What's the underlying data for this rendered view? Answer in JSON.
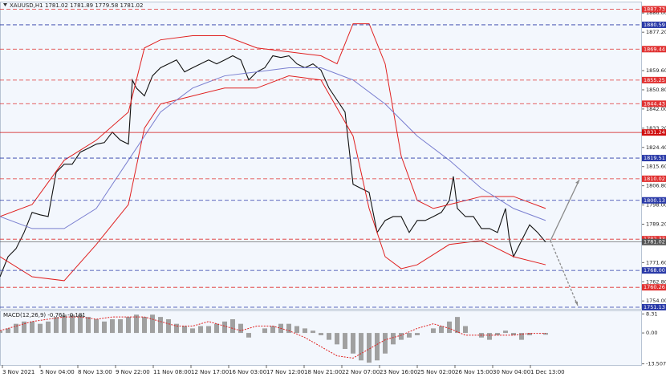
{
  "chart_data": [
    {
      "type": "line",
      "title": "XAUUSD,H1",
      "subtitle": "1781.02 1781.89 1779.58 1781.02",
      "xlim": [
        0,
        800
      ],
      "xticks": [
        {
          "value": 3,
          "label": "3 Nov 2021"
        },
        {
          "value": 50,
          "label": "5 Nov 04:00"
        },
        {
          "value": 97,
          "label": "8 Nov 13:00"
        },
        {
          "value": 144,
          "label": "9 Nov 22:00"
        },
        {
          "value": 191,
          "label": "11 Nov 08:00"
        },
        {
          "value": 238,
          "label": "12 Nov 17:00"
        },
        {
          "value": 285,
          "label": "16 Nov 03:00"
        },
        {
          "value": 332,
          "label": "17 Nov 12:00"
        },
        {
          "value": 379,
          "label": "18 Nov 21:00"
        },
        {
          "value": 426,
          "label": "22 Nov 07:00"
        },
        {
          "value": 473,
          "label": "23 Nov 16:00"
        },
        {
          "value": 520,
          "label": "25 Nov 02:00"
        },
        {
          "value": 567,
          "label": "26 Nov 15:00"
        },
        {
          "value": 614,
          "label": "30 Nov 04:00"
        },
        {
          "value": 661,
          "label": "1 Dec 13:00"
        }
      ],
      "ylim": [
        1750.4,
        1890.5
      ],
      "yticks": [
        {
          "value": 1886,
          "label": "1886.00"
        },
        {
          "value": 1877.2,
          "label": "1877.20"
        },
        {
          "value": 1859.6,
          "label": "1859.60"
        },
        {
          "value": 1850.8,
          "label": "1850.80"
        },
        {
          "value": 1842,
          "label": "1842.00"
        },
        {
          "value": 1833.2,
          "label": "1833.20"
        },
        {
          "value": 1824.4,
          "label": "1824.40"
        },
        {
          "value": 1815.6,
          "label": "1815.60"
        },
        {
          "value": 1806.8,
          "label": "1806.80"
        },
        {
          "value": 1798,
          "label": "1798.00"
        },
        {
          "value": 1789.2,
          "label": "1789.20"
        },
        {
          "value": 1771.6,
          "label": "1771.60"
        },
        {
          "value": 1762.8,
          "label": "1762.80"
        },
        {
          "value": 1754,
          "label": "1754.00"
        }
      ],
      "levels": [
        {
          "value": 1887.73,
          "label": "1887.73",
          "color": "#e03030",
          "dash": true
        },
        {
          "value": 1880.59,
          "label": "1880.59",
          "color": "#2a3aa8",
          "dash": true
        },
        {
          "value": 1869.44,
          "label": "1869.44",
          "color": "#e03030",
          "dash": true
        },
        {
          "value": 1855.25,
          "label": "1855.25",
          "color": "#e03030",
          "dash": true
        },
        {
          "value": 1844.43,
          "label": "1844.43",
          "color": "#e03030",
          "dash": true
        },
        {
          "value": 1831.24,
          "label": "1831.24",
          "color": "#d01010",
          "dash": false
        },
        {
          "value": 1819.51,
          "label": "1819.51",
          "color": "#2a3aa8",
          "dash": true
        },
        {
          "value": 1810.02,
          "label": "1810.02",
          "color": "#e03030",
          "dash": true
        },
        {
          "value": 1800.13,
          "label": "1800.13",
          "color": "#2a3aa8",
          "dash": true
        },
        {
          "value": 1782.33,
          "label": "1782.33",
          "color": "#e03030",
          "dash": true
        },
        {
          "value": 1768,
          "label": "1768.00",
          "color": "#2a3aa8",
          "dash": true
        },
        {
          "value": 1760.26,
          "label": "1760.26",
          "color": "#e03030",
          "dash": true
        },
        {
          "value": 1751.13,
          "label": "1751.13",
          "color": "#2a3aa8",
          "dash": true
        }
      ],
      "series": [
        {
          "color": "#111111",
          "x": [
            0,
            10,
            20,
            30,
            40,
            50,
            60,
            70,
            80,
            90,
            100,
            110,
            120,
            130,
            140,
            150,
            160,
            165,
            170,
            175,
            180,
            190,
            200,
            210,
            220,
            230,
            240,
            250,
            260,
            270,
            280,
            290,
            300,
            310,
            320,
            330,
            340,
            350,
            360,
            370,
            380,
            390,
            400,
            410,
            420,
            430,
            440,
            450,
            460,
            470,
            480,
            490,
            500,
            510,
            520,
            530,
            540,
            550,
            560,
            565,
            570,
            580,
            590,
            600,
            610,
            620,
            630,
            635,
            640,
            650,
            660,
            670,
            680
          ],
          "values": [
            1765.1,
            1774.3,
            1778.0,
            1785.4,
            1794.6,
            1793.5,
            1792.7,
            1813.0,
            1816.7,
            1816.7,
            1822.2,
            1824.0,
            1825.9,
            1826.6,
            1831.4,
            1827.7,
            1825.9,
            1855.3,
            1851.6,
            1849.8,
            1848.0,
            1857.2,
            1860.9,
            1862.7,
            1864.5,
            1859.0,
            1860.9,
            1862.7,
            1864.5,
            1862.7,
            1864.5,
            1866.4,
            1864.5,
            1855.3,
            1859.0,
            1860.9,
            1866.4,
            1865.6,
            1866.4,
            1862.7,
            1860.9,
            1862.7,
            1859.8,
            1851.6,
            1846.1,
            1840.6,
            1807.5,
            1805.6,
            1803.8,
            1785.4,
            1790.9,
            1792.7,
            1792.7,
            1785.4,
            1790.9,
            1790.9,
            1792.7,
            1794.6,
            1800.1,
            1811.1,
            1796.4,
            1792.7,
            1792.7,
            1787.2,
            1787.2,
            1785.4,
            1796.4,
            1781.7,
            1774.3,
            1781.7,
            1788.9,
            1785.4,
            1781.0
          ]
        },
        {
          "color": "#e02020",
          "x": [
            0,
            40,
            80,
            120,
            160,
            180,
            200,
            240,
            280,
            320,
            360,
            400,
            420,
            440,
            460,
            480,
            500,
            520,
            540,
            560,
            600,
            640,
            680
          ],
          "values": [
            1792.7,
            1798.2,
            1818.5,
            1827.7,
            1840.6,
            1870.0,
            1873.7,
            1875.6,
            1875.6,
            1870.0,
            1868.2,
            1866.4,
            1862.7,
            1881.1,
            1881.1,
            1862.7,
            1820.4,
            1800.1,
            1796.4,
            1798.2,
            1801.9,
            1801.9,
            1796.4
          ]
        },
        {
          "color": "#e02020",
          "x": [
            0,
            40,
            80,
            120,
            160,
            180,
            200,
            240,
            280,
            320,
            360,
            400,
            440,
            460,
            480,
            500,
            520,
            560,
            600,
            640,
            680
          ],
          "values": [
            1774.3,
            1765.1,
            1763.3,
            1779.9,
            1798.2,
            1833.2,
            1844.3,
            1848.0,
            1851.6,
            1851.6,
            1857.2,
            1855.3,
            1829.6,
            1796.4,
            1774.3,
            1768.8,
            1770.6,
            1779.9,
            1781.7,
            1774.3,
            1770.6
          ]
        },
        {
          "color": "#7a7fd0",
          "x": [
            0,
            40,
            80,
            120,
            160,
            200,
            240,
            280,
            320,
            360,
            400,
            440,
            480,
            520,
            560,
            600,
            640,
            680
          ],
          "values": [
            1792.7,
            1787.2,
            1787.2,
            1796.4,
            1818.5,
            1840.6,
            1851.6,
            1857.2,
            1859.0,
            1860.9,
            1860.9,
            1855.3,
            1844.3,
            1829.6,
            1818.5,
            1805.6,
            1796.4,
            1790.9
          ]
        }
      ],
      "bid": {
        "value": 1781.02,
        "label": "1781.02",
        "color": "#555555"
      }
    },
    {
      "type": "bar",
      "title": "MACD(12,26,9) -0.761 -0.181",
      "color": "#a0a0a0",
      "xlim": [
        0,
        800
      ],
      "ylim": [
        -14,
        9.5
      ],
      "yticks": [
        8.31,
        {
          "value": 0,
          "label": "0.00"
        },
        -13.507
      ],
      "x": [
        0,
        10,
        20,
        30,
        40,
        50,
        60,
        70,
        80,
        90,
        100,
        110,
        120,
        130,
        140,
        150,
        160,
        170,
        180,
        190,
        200,
        210,
        220,
        230,
        240,
        250,
        260,
        270,
        280,
        290,
        300,
        310,
        320,
        330,
        340,
        350,
        360,
        370,
        380,
        390,
        400,
        410,
        420,
        430,
        440,
        450,
        460,
        470,
        480,
        490,
        500,
        510,
        520,
        530,
        540,
        550,
        560,
        570,
        580,
        590,
        600,
        610,
        620,
        630,
        640,
        650,
        660,
        670,
        680
      ],
      "values": [
        1,
        2,
        4,
        5,
        5,
        4,
        5,
        7,
        8,
        8,
        8,
        7,
        6,
        5,
        6,
        6,
        7,
        8,
        7,
        8,
        7,
        6,
        4,
        3,
        2,
        3,
        3,
        4,
        5,
        6,
        4,
        -2,
        0,
        2,
        3,
        4,
        4,
        3,
        2,
        1,
        -1,
        -3,
        -5,
        -7,
        -9,
        -12,
        -13,
        -12,
        -9,
        -5,
        -3,
        -2,
        -1,
        0,
        2,
        3,
        5,
        7,
        3,
        0,
        -2,
        -3,
        -1,
        1,
        -1,
        -3,
        -1,
        0,
        -0.761
      ],
      "signal": {
        "color": "#e02020",
        "x": [
          0,
          20,
          40,
          60,
          80,
          100,
          120,
          140,
          160,
          180,
          200,
          220,
          240,
          260,
          280,
          300,
          320,
          340,
          360,
          380,
          400,
          420,
          440,
          460,
          480,
          500,
          520,
          540,
          560,
          580,
          600,
          620,
          640,
          660,
          680
        ],
        "values": [
          1,
          3,
          5,
          6,
          7,
          7,
          6,
          7,
          7,
          7,
          5,
          3,
          3,
          5,
          3,
          1,
          3,
          3,
          1,
          -2,
          -6,
          -10,
          -11,
          -7,
          -3,
          -1,
          2,
          4,
          2,
          -1,
          -1,
          -1,
          -1,
          -0.181,
          -0.181
        ]
      }
    }
  ]
}
